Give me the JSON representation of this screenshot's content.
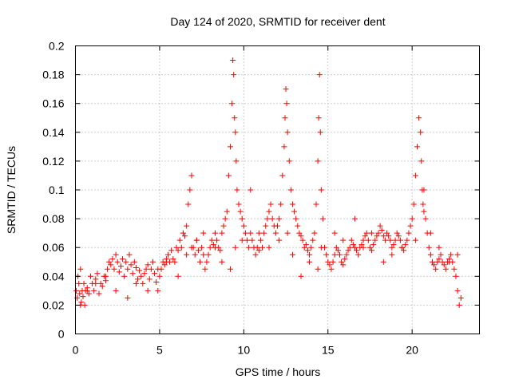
{
  "chart_data": {
    "type": "scatter",
    "title": "Day 124 of 2020, SRMTID for receiver dent",
    "xlabel": "GPS time / hours",
    "ylabel": "SRMTID / TECUs",
    "xlim": [
      0,
      24
    ],
    "ylim": [
      0,
      0.2
    ],
    "x_ticks": [
      0,
      5,
      10,
      15,
      20
    ],
    "x_tick_labels": [
      "0",
      "5",
      "10",
      "15",
      "20"
    ],
    "y_ticks": [
      0,
      0.02,
      0.04,
      0.06,
      0.08,
      0.1,
      0.12,
      0.14,
      0.16,
      0.18,
      0.2
    ],
    "y_tick_labels": [
      "0",
      "0.02",
      "0.04",
      "0.06",
      "0.08",
      "0.1",
      "0.12",
      "0.14",
      "0.16",
      "0.18",
      "0.2"
    ],
    "grid": true,
    "marker": "+",
    "color": "#ff0000",
    "series": [
      {
        "name": "SRMTID",
        "x": [
          0.05,
          0.1,
          0.15,
          0.2,
          0.25,
          0.3,
          0.35,
          0.4,
          0.45,
          0.5,
          0.55,
          0.6,
          0.7,
          0.8,
          0.9,
          1.0,
          1.1,
          1.2,
          1.3,
          1.4,
          1.5,
          1.6,
          1.7,
          1.8,
          1.9,
          2.0,
          2.1,
          2.2,
          2.3,
          2.4,
          2.5,
          2.6,
          2.7,
          2.8,
          2.9,
          3.0,
          3.1,
          3.2,
          3.3,
          3.4,
          3.5,
          3.6,
          3.7,
          3.8,
          3.9,
          4.0,
          4.1,
          4.2,
          4.3,
          4.4,
          4.5,
          4.6,
          4.7,
          4.8,
          4.9,
          5.0,
          5.1,
          5.2,
          5.3,
          5.4,
          5.5,
          5.6,
          5.7,
          5.8,
          5.9,
          6.0,
          6.1,
          6.2,
          6.3,
          6.4,
          6.5,
          6.6,
          6.7,
          6.8,
          6.9,
          7.0,
          7.1,
          7.2,
          7.3,
          7.4,
          7.5,
          7.6,
          7.7,
          7.8,
          7.9,
          8.0,
          8.1,
          8.2,
          8.3,
          8.4,
          8.5,
          8.6,
          8.7,
          8.8,
          8.9,
          9.0,
          9.1,
          9.2,
          9.3,
          9.35,
          9.4,
          9.45,
          9.5,
          9.55,
          9.6,
          9.7,
          9.8,
          9.9,
          10.0,
          10.1,
          10.2,
          10.3,
          10.4,
          10.5,
          10.6,
          10.7,
          10.8,
          10.9,
          11.0,
          11.1,
          11.2,
          11.3,
          11.4,
          11.5,
          11.6,
          11.7,
          11.8,
          11.9,
          12.0,
          12.1,
          12.2,
          12.3,
          12.4,
          12.45,
          12.5,
          12.55,
          12.6,
          12.7,
          12.8,
          12.9,
          13.0,
          13.1,
          13.2,
          13.3,
          13.4,
          13.5,
          13.6,
          13.7,
          13.8,
          13.9,
          14.0,
          14.1,
          14.2,
          14.3,
          14.4,
          14.45,
          14.5,
          14.55,
          14.6,
          14.7,
          14.8,
          14.9,
          15.0,
          15.1,
          15.2,
          15.3,
          15.4,
          15.5,
          15.6,
          15.7,
          15.8,
          15.9,
          16.0,
          16.1,
          16.2,
          16.3,
          16.4,
          16.5,
          16.6,
          16.7,
          16.8,
          16.9,
          17.0,
          17.1,
          17.2,
          17.3,
          17.4,
          17.5,
          17.6,
          17.7,
          17.8,
          17.9,
          18.0,
          18.1,
          18.2,
          18.3,
          18.4,
          18.5,
          18.6,
          18.7,
          18.8,
          18.9,
          19.0,
          19.1,
          19.2,
          19.3,
          19.4,
          19.5,
          19.6,
          19.7,
          19.8,
          19.9,
          20.0,
          20.1,
          20.2,
          20.3,
          20.4,
          20.5,
          20.55,
          20.6,
          20.65,
          20.7,
          20.8,
          20.9,
          21.0,
          21.1,
          21.2,
          21.3,
          21.4,
          21.5,
          21.6,
          21.7,
          21.8,
          21.9,
          22.0,
          22.1,
          22.2,
          22.3,
          22.4,
          22.5,
          22.6,
          22.7,
          22.8,
          22.9,
          0.3,
          0.7,
          1.2,
          1.8,
          2.4,
          3.1,
          3.6,
          4.3,
          4.9,
          5.4,
          6.1,
          6.6,
          6.9,
          7.2,
          7.6,
          8.3,
          8.7,
          9.2,
          9.5,
          9.9,
          10.4,
          10.9,
          11.5,
          12.1,
          12.6,
          12.9,
          13.4,
          13.9,
          14.4,
          14.6,
          15.4,
          15.9,
          16.6,
          17.1,
          17.6,
          18.3,
          18.8,
          19.4,
          20.2,
          20.7,
          21.1,
          21.6,
          22.2,
          22.7
        ],
        "y": [
          0.03,
          0.025,
          0.04,
          0.035,
          0.028,
          0.045,
          0.022,
          0.03,
          0.026,
          0.035,
          0.02,
          0.03,
          0.032,
          0.028,
          0.04,
          0.035,
          0.03,
          0.038,
          0.042,
          0.028,
          0.035,
          0.033,
          0.04,
          0.037,
          0.045,
          0.05,
          0.048,
          0.052,
          0.045,
          0.055,
          0.05,
          0.043,
          0.047,
          0.052,
          0.04,
          0.05,
          0.045,
          0.055,
          0.048,
          0.042,
          0.05,
          0.046,
          0.038,
          0.044,
          0.04,
          0.035,
          0.042,
          0.045,
          0.048,
          0.038,
          0.045,
          0.05,
          0.042,
          0.036,
          0.03,
          0.04,
          0.045,
          0.05,
          0.048,
          0.052,
          0.055,
          0.05,
          0.058,
          0.052,
          0.05,
          0.06,
          0.058,
          0.065,
          0.06,
          0.07,
          0.068,
          0.075,
          0.09,
          0.1,
          0.11,
          0.06,
          0.055,
          0.065,
          0.058,
          0.05,
          0.06,
          0.055,
          0.045,
          0.05,
          0.055,
          0.06,
          0.065,
          0.062,
          0.07,
          0.065,
          0.06,
          0.058,
          0.07,
          0.075,
          0.08,
          0.085,
          0.11,
          0.13,
          0.16,
          0.19,
          0.18,
          0.15,
          0.14,
          0.12,
          0.1,
          0.09,
          0.085,
          0.08,
          0.075,
          0.07,
          0.065,
          0.06,
          0.07,
          0.065,
          0.06,
          0.055,
          0.06,
          0.058,
          0.065,
          0.06,
          0.07,
          0.075,
          0.08,
          0.085,
          0.09,
          0.08,
          0.075,
          0.07,
          0.075,
          0.08,
          0.09,
          0.11,
          0.13,
          0.15,
          0.17,
          0.16,
          0.14,
          0.12,
          0.1,
          0.09,
          0.085,
          0.08,
          0.075,
          0.07,
          0.068,
          0.065,
          0.06,
          0.062,
          0.058,
          0.055,
          0.06,
          0.065,
          0.07,
          0.09,
          0.12,
          0.15,
          0.18,
          0.14,
          0.1,
          0.08,
          0.06,
          0.055,
          0.05,
          0.048,
          0.045,
          0.05,
          0.055,
          0.06,
          0.058,
          0.055,
          0.05,
          0.048,
          0.052,
          0.055,
          0.058,
          0.06,
          0.065,
          0.062,
          0.06,
          0.058,
          0.055,
          0.06,
          0.062,
          0.065,
          0.068,
          0.07,
          0.065,
          0.06,
          0.058,
          0.062,
          0.065,
          0.068,
          0.07,
          0.075,
          0.072,
          0.068,
          0.065,
          0.07,
          0.068,
          0.065,
          0.06,
          0.062,
          0.065,
          0.07,
          0.068,
          0.065,
          0.06,
          0.058,
          0.062,
          0.065,
          0.07,
          0.075,
          0.08,
          0.09,
          0.11,
          0.13,
          0.15,
          0.14,
          0.12,
          0.1,
          0.09,
          0.085,
          0.08,
          0.07,
          0.06,
          0.055,
          0.05,
          0.048,
          0.045,
          0.05,
          0.052,
          0.055,
          0.05,
          0.048,
          0.045,
          0.05,
          0.052,
          0.055,
          0.05,
          0.045,
          0.04,
          0.03,
          0.02,
          0.025,
          0.02,
          0.03,
          0.035,
          0.04,
          0.03,
          0.025,
          0.035,
          0.03,
          0.045,
          0.05,
          0.04,
          0.055,
          0.06,
          0.065,
          0.07,
          0.06,
          0.05,
          0.045,
          0.06,
          0.065,
          0.1,
          0.07,
          0.06,
          0.065,
          0.07,
          0.055,
          0.04,
          0.05,
          0.045,
          0.06,
          0.07,
          0.065,
          0.08,
          0.06,
          0.07,
          0.05,
          0.055,
          0.06,
          0.065,
          0.1,
          0.07,
          0.06,
          0.05,
          0.055
        ]
      }
    ]
  }
}
